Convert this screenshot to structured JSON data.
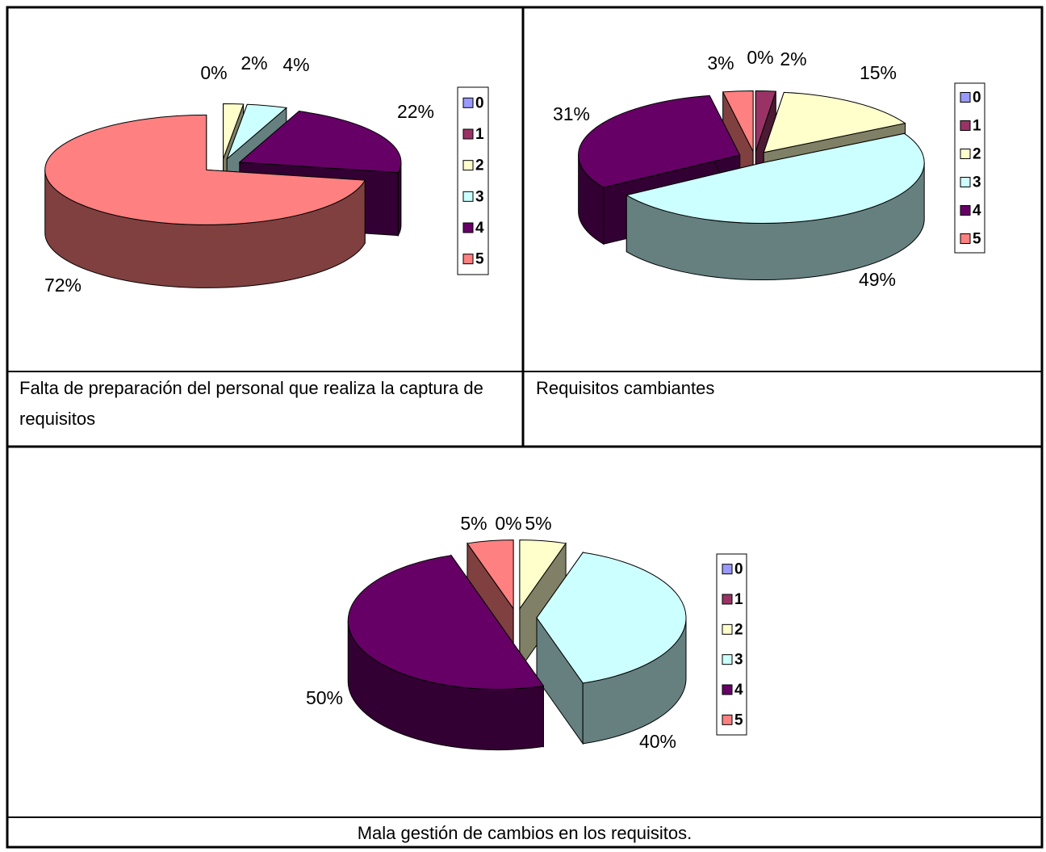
{
  "chart_data": [
    {
      "type": "pie",
      "categories": [
        "0",
        "1",
        "2",
        "3",
        "4",
        "5"
      ],
      "values": [
        0,
        0,
        2,
        4,
        22,
        72
      ],
      "value_labels": [
        "0%",
        null,
        "2%",
        "4%",
        "22%",
        "72%"
      ],
      "colors": [
        "#9999ff",
        "#993366",
        "#ffffcc",
        "#ccffff",
        "#660066",
        "#ff8080"
      ]
    },
    {
      "type": "pie",
      "categories": [
        "0",
        "1",
        "2",
        "3",
        "4",
        "5"
      ],
      "values": [
        0,
        2,
        15,
        49,
        31,
        3
      ],
      "value_labels": [
        "0%",
        "2%",
        "15%",
        "49%",
        "31%",
        "3%"
      ],
      "colors": [
        "#9999ff",
        "#993366",
        "#ffffcc",
        "#ccffff",
        "#660066",
        "#ff8080"
      ]
    },
    {
      "type": "pie",
      "categories": [
        "0",
        "1",
        "2",
        "3",
        "4",
        "5"
      ],
      "values": [
        0,
        0,
        5,
        40,
        50,
        5
      ],
      "value_labels": [
        "0%",
        null,
        "5%",
        "40%",
        "50%",
        "5%"
      ],
      "colors": [
        "#9999ff",
        "#993366",
        "#ffffcc",
        "#ccffff",
        "#660066",
        "#ff8080"
      ]
    }
  ],
  "captions": [
    "Falta de preparación del personal que realiza la captura de requisitos",
    "Requisitos cambiantes",
    "Mala gestión de cambios en los requisitos."
  ]
}
